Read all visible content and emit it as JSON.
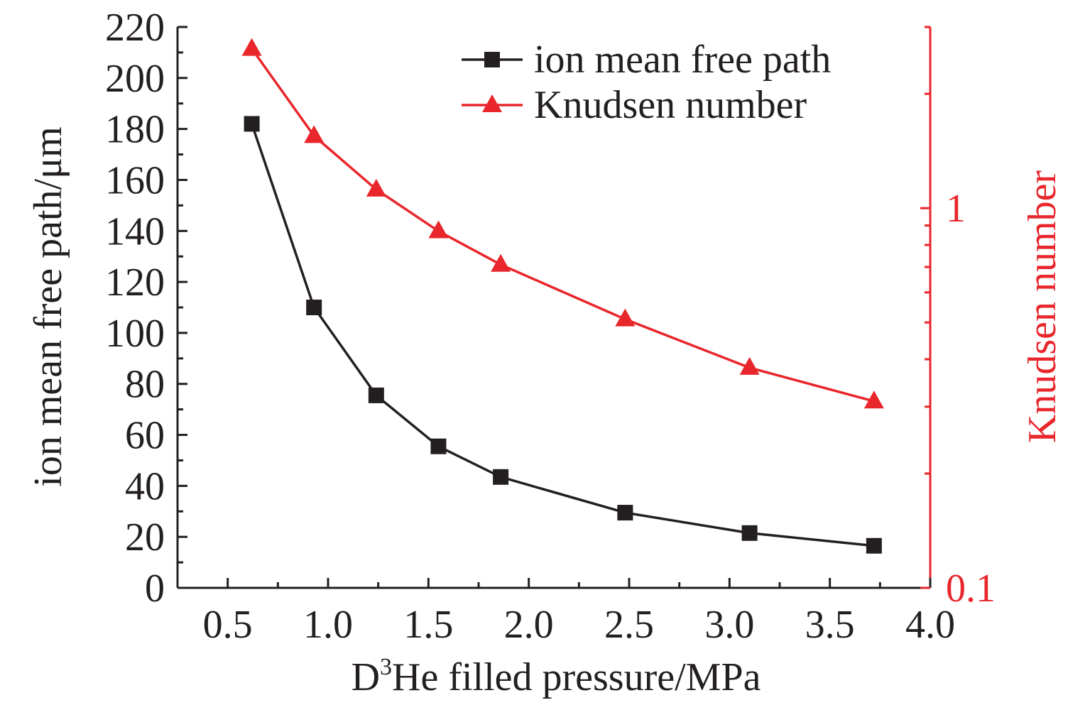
{
  "chart_data": {
    "type": "line",
    "xlabel": "D³He filled pressure/MPa",
    "xlabel_parts": {
      "pre": "D",
      "sup": "3",
      "post": "He filled pressure/MPa"
    },
    "ylabel": "ion mean free path/μm",
    "y2label": "Knudsen number",
    "xlim": [
      0.25,
      4.0
    ],
    "ylim": [
      0,
      220
    ],
    "y2lim": [
      0.1,
      3.0
    ],
    "y2scale": "log",
    "x_ticks": [
      {
        "v": 0.5,
        "label": "0.5"
      },
      {
        "v": 1.0,
        "label": "1.0"
      },
      {
        "v": 1.5,
        "label": "1.5"
      },
      {
        "v": 2.0,
        "label": "2.0"
      },
      {
        "v": 2.5,
        "label": "2.5"
      },
      {
        "v": 3.0,
        "label": "3.0"
      },
      {
        "v": 3.5,
        "label": "3.5"
      },
      {
        "v": 4.0,
        "label": "4.0"
      }
    ],
    "y_ticks": [
      {
        "v": 0,
        "label": "0"
      },
      {
        "v": 20,
        "label": "20"
      },
      {
        "v": 40,
        "label": "40"
      },
      {
        "v": 60,
        "label": "60"
      },
      {
        "v": 80,
        "label": "80"
      },
      {
        "v": 100,
        "label": "100"
      },
      {
        "v": 120,
        "label": "120"
      },
      {
        "v": 140,
        "label": "140"
      },
      {
        "v": 160,
        "label": "160"
      },
      {
        "v": 180,
        "label": "180"
      },
      {
        "v": 200,
        "label": "200"
      },
      {
        "v": 220,
        "label": "220"
      }
    ],
    "y2_ticks": [
      {
        "v": 0.1,
        "label": "0.1"
      },
      {
        "v": 1,
        "label": "1"
      }
    ],
    "y2_minor_ticks": [
      0.2,
      0.3,
      0.4,
      0.5,
      0.6,
      0.7,
      0.8,
      0.9,
      2,
      3
    ],
    "legend_position": "top-right",
    "series": [
      {
        "name": "ion mean free path",
        "axis": "left",
        "marker": "square",
        "color": "#231f20",
        "x": [
          0.62,
          0.93,
          1.24,
          1.55,
          1.86,
          2.48,
          3.1,
          3.72
        ],
        "y": [
          182,
          110,
          75.5,
          55.5,
          43.5,
          29.5,
          21.5,
          16.5
        ]
      },
      {
        "name": "Knudsen number",
        "axis": "right",
        "marker": "triangle",
        "color": "#e8262b",
        "x": [
          0.62,
          0.93,
          1.24,
          1.55,
          1.86,
          2.48,
          3.1,
          3.72
        ],
        "y": [
          2.63,
          1.55,
          1.12,
          0.87,
          0.71,
          0.51,
          0.38,
          0.31
        ]
      }
    ]
  }
}
